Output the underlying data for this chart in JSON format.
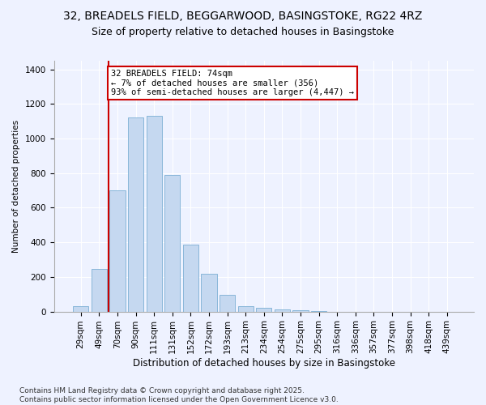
{
  "title": "32, BREADELS FIELD, BEGGARWOOD, BASINGSTOKE, RG22 4RZ",
  "subtitle": "Size of property relative to detached houses in Basingstoke",
  "xlabel": "Distribution of detached houses by size in Basingstoke",
  "ylabel": "Number of detached properties",
  "categories": [
    "29sqm",
    "49sqm",
    "70sqm",
    "90sqm",
    "111sqm",
    "131sqm",
    "152sqm",
    "172sqm",
    "193sqm",
    "213sqm",
    "234sqm",
    "254sqm",
    "275sqm",
    "295sqm",
    "316sqm",
    "336sqm",
    "357sqm",
    "377sqm",
    "398sqm",
    "418sqm",
    "439sqm"
  ],
  "values": [
    30,
    245,
    700,
    1120,
    1130,
    790,
    385,
    220,
    95,
    30,
    20,
    13,
    8,
    4,
    0,
    0,
    0,
    0,
    0,
    0,
    0
  ],
  "bar_color": "#c5d8f0",
  "bar_edge_color": "#7bafd4",
  "vline_color": "#cc0000",
  "annotation_text": "32 BREADELS FIELD: 74sqm\n← 7% of detached houses are smaller (356)\n93% of semi-detached houses are larger (4,447) →",
  "annotation_box_color": "#cc0000",
  "ylim": [
    0,
    1450
  ],
  "yticks": [
    0,
    200,
    400,
    600,
    800,
    1000,
    1200,
    1400
  ],
  "bg_color": "#eef2ff",
  "plot_bg_color": "#eef2ff",
  "footer": "Contains HM Land Registry data © Crown copyright and database right 2025.\nContains public sector information licensed under the Open Government Licence v3.0.",
  "title_fontsize": 10,
  "subtitle_fontsize": 9,
  "xlabel_fontsize": 8.5,
  "ylabel_fontsize": 7.5,
  "footer_fontsize": 6.5,
  "tick_fontsize": 7.5,
  "annotation_fontsize": 7.5
}
